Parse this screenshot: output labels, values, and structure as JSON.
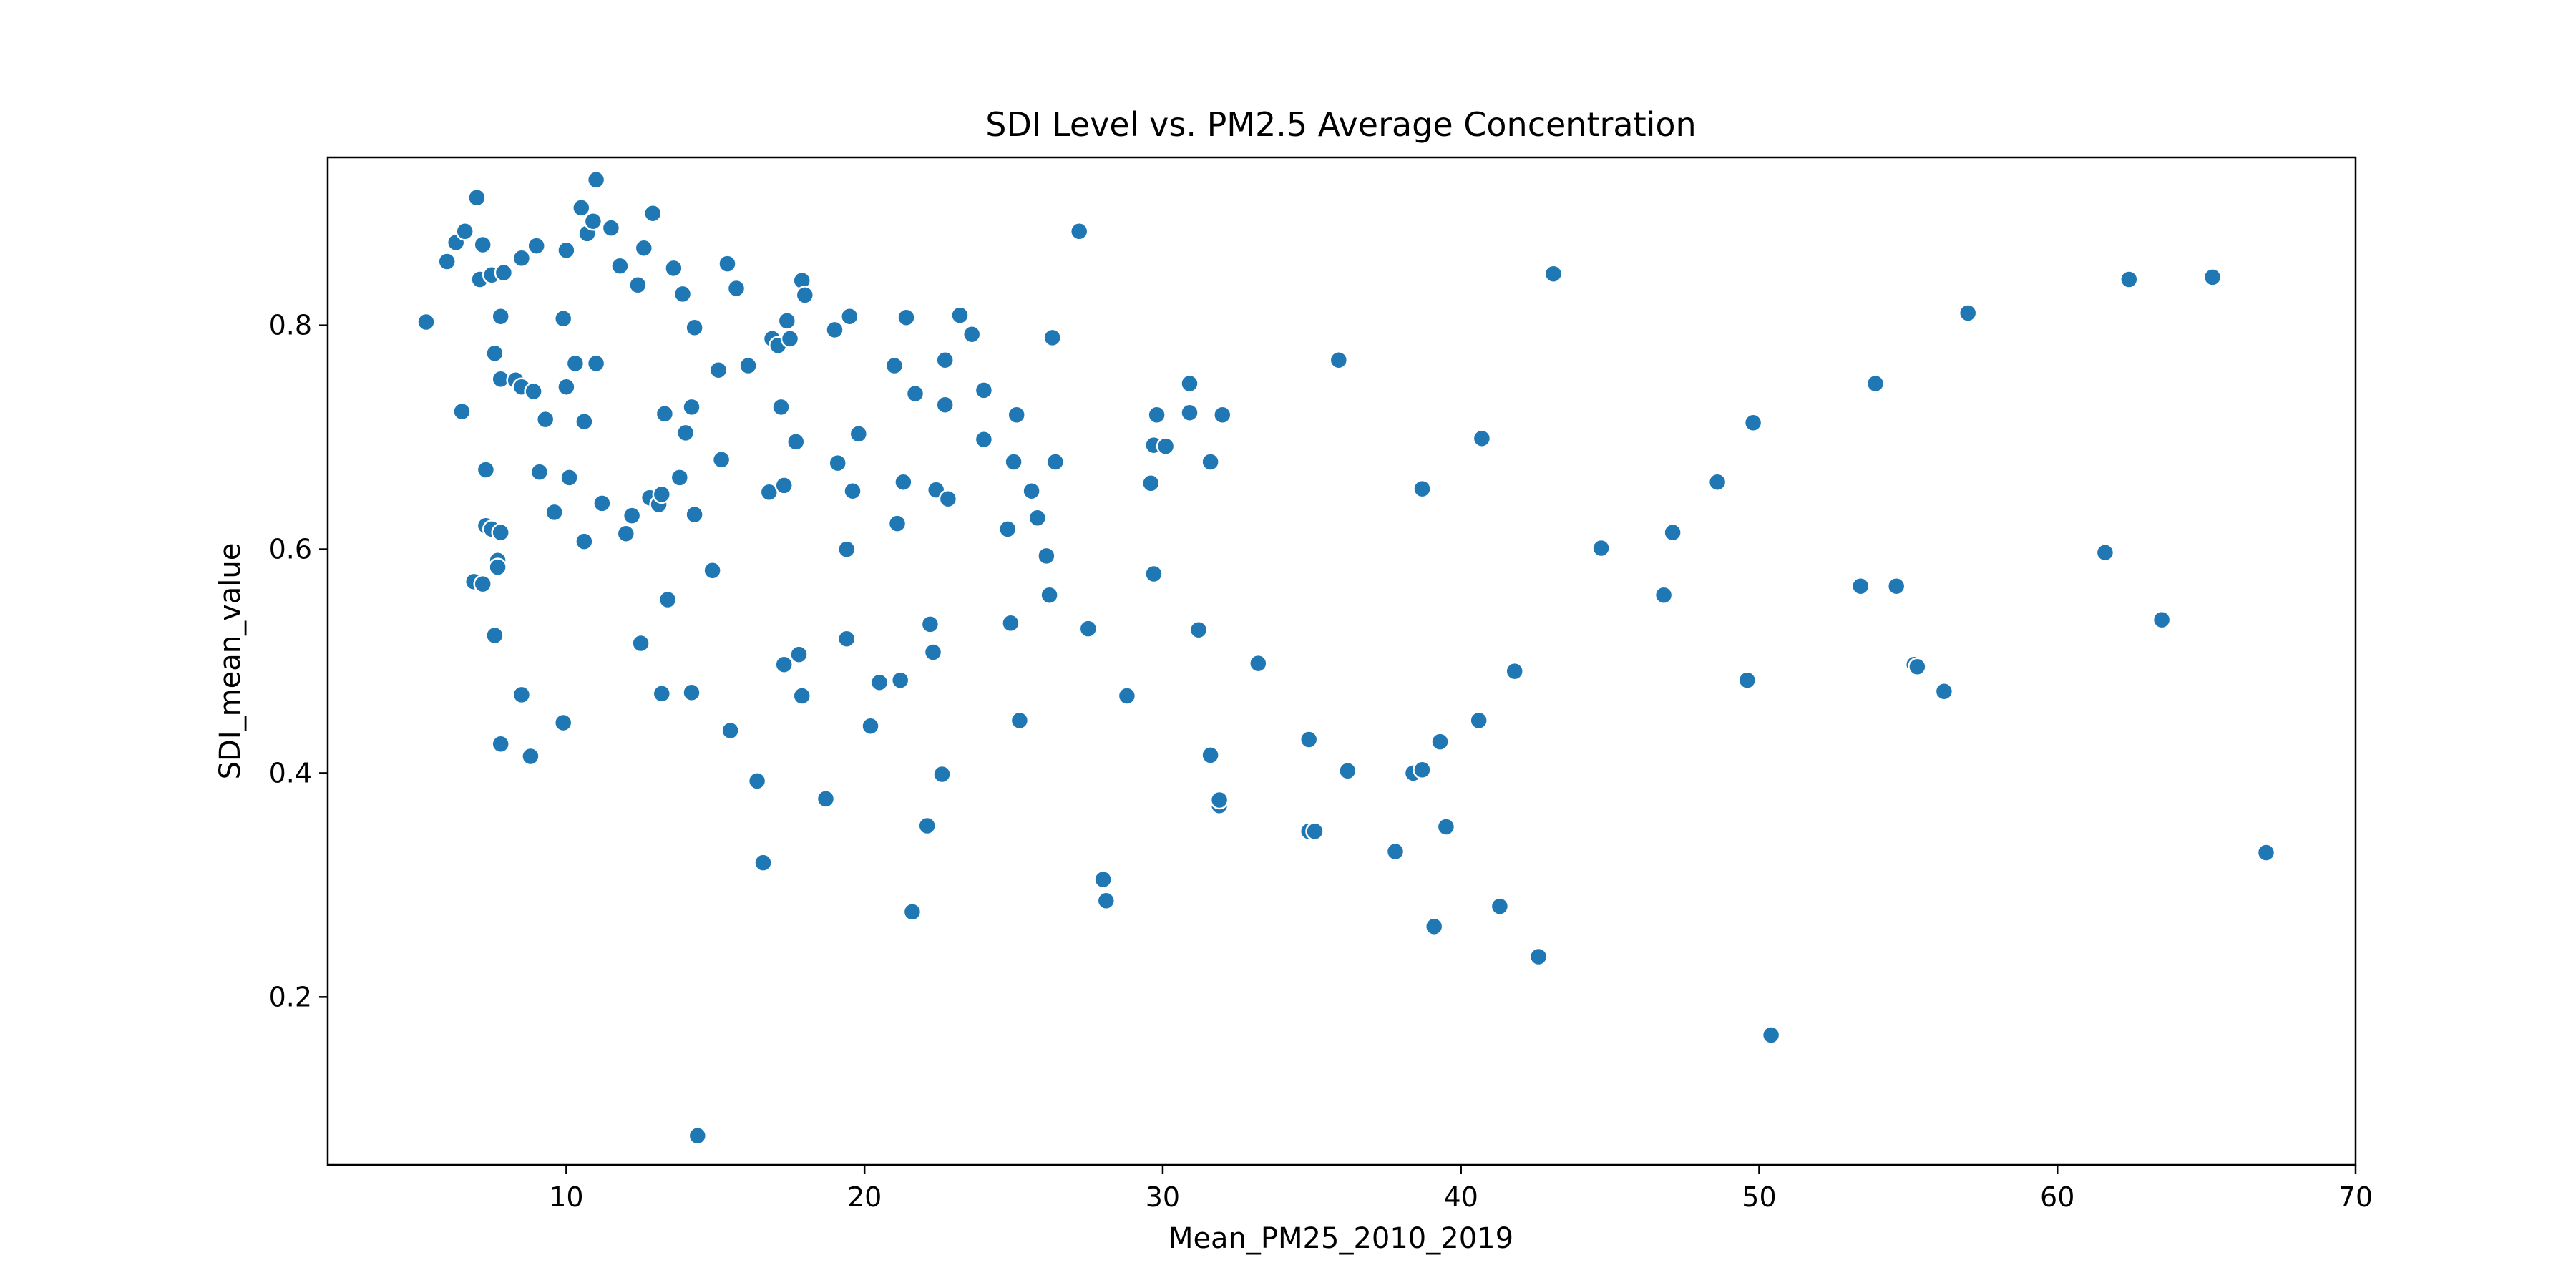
{
  "chart_data": {
    "type": "scatter",
    "title": "SDI Level vs. PM2.5 Average Concentration",
    "xlabel": "Mean_PM25_2010_2019",
    "ylabel": "SDI_mean_value",
    "xlim": [
      2,
      70
    ],
    "ylim": [
      0.05,
      0.95
    ],
    "xticks": [
      10,
      20,
      30,
      40,
      50,
      60,
      70
    ],
    "yticks": [
      0.2,
      0.4,
      0.6,
      0.8
    ],
    "grid": false,
    "marker_color": "#1f77b4",
    "series": [
      {
        "points": [
          [
            5.3,
            0.803
          ],
          [
            6.0,
            0.857
          ],
          [
            6.3,
            0.874
          ],
          [
            6.5,
            0.723
          ],
          [
            6.6,
            0.884
          ],
          [
            6.9,
            0.571
          ],
          [
            7.0,
            0.914
          ],
          [
            7.1,
            0.841
          ],
          [
            7.2,
            0.872
          ],
          [
            7.2,
            0.569
          ],
          [
            7.3,
            0.671
          ],
          [
            7.3,
            0.621
          ],
          [
            7.5,
            0.845
          ],
          [
            7.5,
            0.618
          ],
          [
            7.6,
            0.775
          ],
          [
            7.6,
            0.523
          ],
          [
            7.7,
            0.59
          ],
          [
            7.7,
            0.584
          ],
          [
            7.8,
            0.808
          ],
          [
            7.8,
            0.615
          ],
          [
            7.8,
            0.426
          ],
          [
            7.8,
            0.752
          ],
          [
            7.9,
            0.847
          ],
          [
            8.3,
            0.751
          ],
          [
            8.5,
            0.745
          ],
          [
            8.5,
            0.86
          ],
          [
            8.5,
            0.47
          ],
          [
            8.8,
            0.415
          ],
          [
            8.9,
            0.741
          ],
          [
            9.0,
            0.871
          ],
          [
            9.1,
            0.669
          ],
          [
            9.3,
            0.716
          ],
          [
            9.6,
            0.633
          ],
          [
            9.9,
            0.806
          ],
          [
            9.9,
            0.445
          ],
          [
            10.0,
            0.867
          ],
          [
            10.0,
            0.745
          ],
          [
            10.1,
            0.664
          ],
          [
            10.3,
            0.766
          ],
          [
            10.5,
            0.905
          ],
          [
            10.6,
            0.714
          ],
          [
            10.6,
            0.607
          ],
          [
            10.7,
            0.882
          ],
          [
            10.9,
            0.893
          ],
          [
            11.0,
            0.93
          ],
          [
            11.0,
            0.766
          ],
          [
            11.2,
            0.641
          ],
          [
            11.5,
            0.887
          ],
          [
            11.8,
            0.853
          ],
          [
            12.0,
            0.614
          ],
          [
            12.2,
            0.63
          ],
          [
            12.4,
            0.836
          ],
          [
            12.5,
            0.516
          ],
          [
            12.6,
            0.869
          ],
          [
            12.8,
            0.646
          ],
          [
            12.9,
            0.9
          ],
          [
            13.1,
            0.64
          ],
          [
            13.2,
            0.649
          ],
          [
            13.2,
            0.471
          ],
          [
            13.3,
            0.721
          ],
          [
            13.4,
            0.555
          ],
          [
            13.6,
            0.851
          ],
          [
            13.8,
            0.664
          ],
          [
            13.9,
            0.828
          ],
          [
            14.0,
            0.704
          ],
          [
            14.2,
            0.727
          ],
          [
            14.2,
            0.472
          ],
          [
            14.3,
            0.631
          ],
          [
            14.3,
            0.798
          ],
          [
            14.4,
            0.076
          ],
          [
            14.9,
            0.581
          ],
          [
            15.1,
            0.76
          ],
          [
            15.2,
            0.68
          ],
          [
            15.4,
            0.855
          ],
          [
            15.5,
            0.438
          ],
          [
            15.7,
            0.833
          ],
          [
            16.1,
            0.764
          ],
          [
            16.4,
            0.393
          ],
          [
            16.6,
            0.32
          ],
          [
            16.8,
            0.651
          ],
          [
            16.9,
            0.788
          ],
          [
            17.1,
            0.782
          ],
          [
            17.2,
            0.727
          ],
          [
            17.3,
            0.497
          ],
          [
            17.3,
            0.657
          ],
          [
            17.4,
            0.804
          ],
          [
            17.5,
            0.788
          ],
          [
            17.7,
            0.696
          ],
          [
            17.8,
            0.506
          ],
          [
            17.9,
            0.84
          ],
          [
            17.9,
            0.469
          ],
          [
            18.0,
            0.827
          ],
          [
            18.7,
            0.377
          ],
          [
            19.0,
            0.796
          ],
          [
            19.1,
            0.677
          ],
          [
            19.4,
            0.6
          ],
          [
            19.4,
            0.52
          ],
          [
            19.5,
            0.808
          ],
          [
            19.6,
            0.652
          ],
          [
            19.8,
            0.703
          ],
          [
            20.2,
            0.442
          ],
          [
            20.5,
            0.481
          ],
          [
            21.0,
            0.764
          ],
          [
            21.1,
            0.623
          ],
          [
            21.2,
            0.483
          ],
          [
            21.3,
            0.66
          ],
          [
            21.4,
            0.807
          ],
          [
            21.6,
            0.276
          ],
          [
            21.7,
            0.739
          ],
          [
            22.1,
            0.353
          ],
          [
            22.2,
            0.533
          ],
          [
            22.3,
            0.508
          ],
          [
            22.4,
            0.653
          ],
          [
            22.6,
            0.399
          ],
          [
            22.7,
            0.769
          ],
          [
            22.7,
            0.729
          ],
          [
            22.8,
            0.645
          ],
          [
            23.2,
            0.809
          ],
          [
            23.6,
            0.792
          ],
          [
            24.0,
            0.742
          ],
          [
            24.0,
            0.698
          ],
          [
            24.8,
            0.618
          ],
          [
            24.9,
            0.534
          ],
          [
            25.0,
            0.678
          ],
          [
            25.1,
            0.72
          ],
          [
            25.2,
            0.447
          ],
          [
            25.6,
            0.652
          ],
          [
            25.8,
            0.628
          ],
          [
            26.1,
            0.594
          ],
          [
            26.2,
            0.559
          ],
          [
            26.3,
            0.789
          ],
          [
            26.4,
            0.678
          ],
          [
            27.2,
            0.884
          ],
          [
            27.5,
            0.529
          ],
          [
            28.0,
            0.305
          ],
          [
            28.1,
            0.286
          ],
          [
            28.8,
            0.469
          ],
          [
            29.6,
            0.659
          ],
          [
            29.7,
            0.578
          ],
          [
            29.7,
            0.693
          ],
          [
            29.8,
            0.72
          ],
          [
            30.1,
            0.692
          ],
          [
            30.9,
            0.748
          ],
          [
            30.9,
            0.722
          ],
          [
            31.2,
            0.528
          ],
          [
            31.6,
            0.678
          ],
          [
            31.6,
            0.416
          ],
          [
            31.9,
            0.371
          ],
          [
            31.9,
            0.376
          ],
          [
            32.0,
            0.72
          ],
          [
            33.2,
            0.498
          ],
          [
            34.9,
            0.43
          ],
          [
            34.9,
            0.348
          ],
          [
            35.1,
            0.348
          ],
          [
            35.9,
            0.769
          ],
          [
            36.2,
            0.402
          ],
          [
            37.8,
            0.33
          ],
          [
            38.4,
            0.4
          ],
          [
            38.7,
            0.654
          ],
          [
            38.7,
            0.403
          ],
          [
            39.1,
            0.263
          ],
          [
            39.3,
            0.428
          ],
          [
            39.5,
            0.352
          ],
          [
            40.6,
            0.447
          ],
          [
            40.7,
            0.699
          ],
          [
            41.3,
            0.281
          ],
          [
            41.8,
            0.491
          ],
          [
            42.6,
            0.236
          ],
          [
            43.1,
            0.846
          ],
          [
            44.7,
            0.601
          ],
          [
            46.8,
            0.559
          ],
          [
            47.1,
            0.615
          ],
          [
            48.6,
            0.66
          ],
          [
            49.6,
            0.483
          ],
          [
            49.8,
            0.713
          ],
          [
            50.4,
            0.166
          ],
          [
            53.4,
            0.567
          ],
          [
            53.9,
            0.748
          ],
          [
            54.6,
            0.567
          ],
          [
            55.2,
            0.497
          ],
          [
            55.3,
            0.495
          ],
          [
            56.2,
            0.473
          ],
          [
            57.0,
            0.811
          ],
          [
            61.6,
            0.597
          ],
          [
            62.4,
            0.841
          ],
          [
            63.5,
            0.537
          ],
          [
            65.2,
            0.843
          ],
          [
            67.0,
            0.329
          ]
        ]
      }
    ]
  }
}
